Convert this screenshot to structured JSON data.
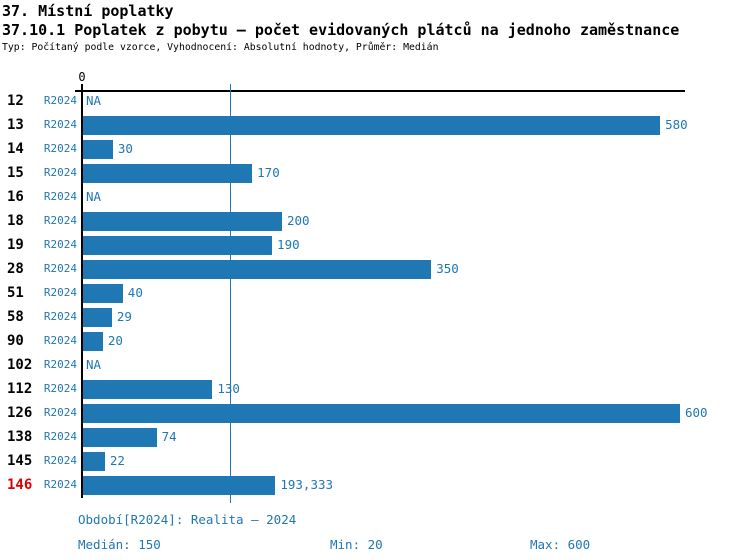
{
  "header": {
    "title": "37. Místní poplatky",
    "subtitle": "37.10.1 Poplatek z pobytu – počet evidovaných plátců na jednoho zaměstnance",
    "meta": "Typ: Počítaný podle vzorce, Vyhodnocení: Absolutní hodnoty, Průměr: Medián"
  },
  "chart_data": {
    "type": "bar",
    "orientation": "horizontal",
    "title": "37.10.1 Poplatek z pobytu – počet evidovaných plátců na jednoho zaměstnance",
    "xlabel": "",
    "ylabel": "",
    "series_label": "R2024",
    "categories": [
      "12",
      "13",
      "14",
      "15",
      "16",
      "18",
      "19",
      "28",
      "51",
      "58",
      "90",
      "102",
      "112",
      "126",
      "138",
      "145",
      "146"
    ],
    "values": [
      null,
      580,
      30,
      170,
      null,
      200,
      190,
      350,
      40,
      29,
      20,
      null,
      130,
      600,
      74,
      22,
      193.333
    ],
    "value_labels": [
      "NA",
      "580",
      "30",
      "170",
      "NA",
      "200",
      "190",
      "350",
      "40",
      "29",
      "20",
      "NA",
      "130",
      "600",
      "74",
      "22",
      "193,333"
    ],
    "na_label": "NA",
    "highlighted_category": "146",
    "axis": {
      "origin_label": "0",
      "xlim": [
        0,
        605
      ],
      "median_line_value": 150,
      "grid": false
    },
    "legend_position": "none",
    "colors": {
      "bar": "#1f77b4",
      "label_blue": "#1f77b4",
      "highlight_red": "#dd0000",
      "axis_black": "#000000"
    }
  },
  "footer": {
    "period": "Období[R2024]: Realita – 2024",
    "median": "Medián: 150",
    "min": "Min: 20",
    "max": "Max: 600"
  }
}
